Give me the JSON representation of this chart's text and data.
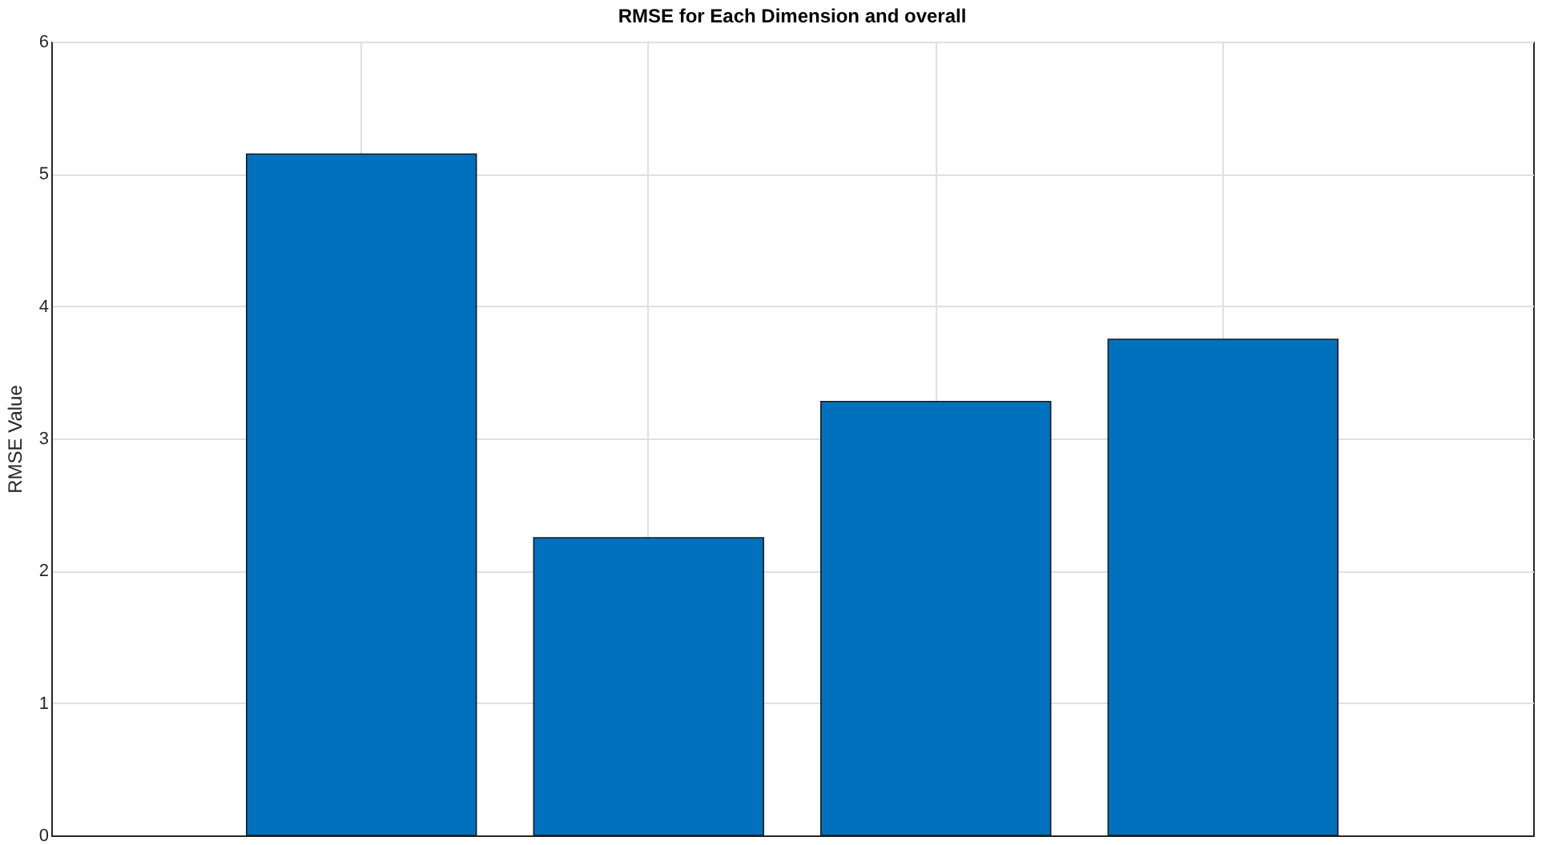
{
  "chart_data": {
    "type": "bar",
    "title": "RMSE for Each Dimension and overall",
    "ylabel": "RMSE Value",
    "categories": [
      null,
      null,
      null,
      null
    ],
    "values": [
      5.15,
      2.25,
      3.28,
      3.75
    ],
    "color": "#0072bd",
    "ylim": [
      0,
      6
    ],
    "yticks": [
      0,
      1,
      2,
      3,
      4,
      5,
      6
    ],
    "grid": true,
    "tick_labels": "y"
  }
}
